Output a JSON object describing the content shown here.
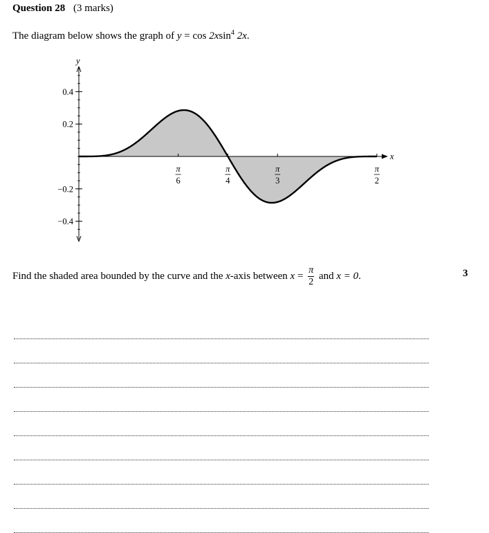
{
  "question": {
    "label": "Question 28",
    "marks_text": "(3 marks)",
    "intro_text": "The diagram below shows the graph of",
    "equation": {
      "y": "y",
      "eq": " = ",
      "cos": "cos",
      "arg1": "2x",
      "sin": "sin",
      "power": "4",
      "arg2": "2x",
      "end": "."
    },
    "prompt_before": "Find the shaded area bounded by the curve and the ",
    "prompt_x_axis_var": "x",
    "prompt_after_axis": "-axis between",
    "bound1_var": "x",
    "bound1_num": "π",
    "bound1_den": "2",
    "and_text": "and",
    "bound2": "x = 0",
    "bound2_end": ".",
    "marks_number": "3"
  },
  "chart_data": {
    "type": "line",
    "function": "y = cos 2x sin^4 2x",
    "xlabel": "x",
    "ylabel": "y",
    "xlim": [
      0,
      1.5708
    ],
    "ylim": [
      -0.5,
      0.5
    ],
    "x_ticks": [
      {
        "value": 0.5236,
        "num": "π",
        "den": "6"
      },
      {
        "value": 0.7854,
        "num": "π",
        "den": "4"
      },
      {
        "value": 1.0472,
        "num": "π",
        "den": "3"
      },
      {
        "value": 1.5708,
        "num": "π",
        "den": "2"
      }
    ],
    "y_ticks": [
      {
        "value": 0.4,
        "label": "0.4"
      },
      {
        "value": 0.2,
        "label": "0.2"
      },
      {
        "value": -0.2,
        "label": "−0.2"
      },
      {
        "value": -0.4,
        "label": "−0.4"
      }
    ],
    "shaded_region": {
      "from": 0,
      "to": 1.5708
    },
    "curve_color": "#000000",
    "shade_color": "#c8c8c8"
  },
  "answer_lines": 9
}
